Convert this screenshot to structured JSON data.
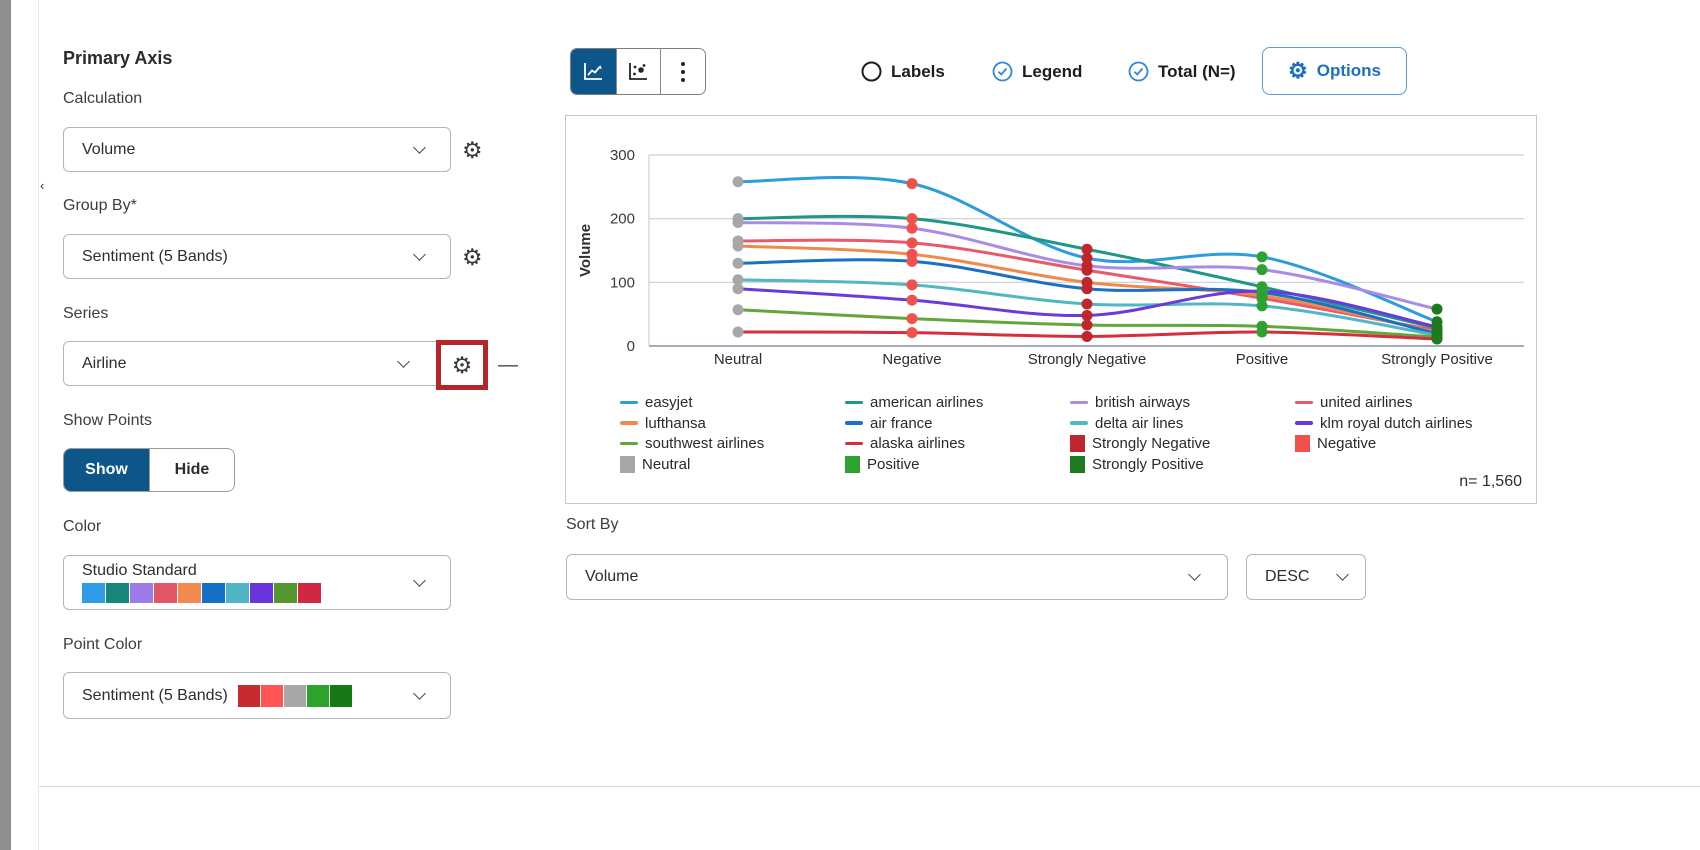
{
  "left_panel": {
    "title": "Primary Axis",
    "fields": [
      {
        "label": "Calculation",
        "value": "Volume"
      },
      {
        "label": "Group By*",
        "value": "Sentiment (5 Bands)"
      },
      {
        "label": "Series",
        "value": "Airline"
      }
    ],
    "series_remove_label": "—",
    "show_points": {
      "label": "Show Points",
      "options": [
        "Show",
        "Hide"
      ],
      "selected": "Show"
    },
    "color": {
      "label": "Color",
      "value": "Studio Standard",
      "swatches": [
        "#2E9BE6",
        "#17877B",
        "#9C7AE8",
        "#E05666",
        "#F2894E",
        "#1470C6",
        "#4FB4C4",
        "#6933DE",
        "#55972F",
        "#D02840"
      ]
    },
    "point_color": {
      "label": "Point Color",
      "value": "Sentiment (5 Bands)",
      "swatches": [
        "#C62A2E",
        "#FF5552",
        "#A8A8A8",
        "#2DA32D",
        "#187818"
      ]
    }
  },
  "toolbar": {
    "labels_toggle": "Labels",
    "legend_toggle": "Legend",
    "total_toggle": "Total (N=)",
    "options_label": "Options",
    "selected_chart_type": "line",
    "accent_blue": "#1B6FC8",
    "selected_bg": "#0C5689"
  },
  "chart_data": {
    "type": "line",
    "ylabel": "Volume",
    "ylim": [
      0,
      300
    ],
    "yticks": [
      0,
      100,
      200,
      300
    ],
    "grid": true,
    "legend_position": "bottom",
    "categories": [
      "Neutral",
      "Negative",
      "Strongly Negative",
      "Positive",
      "Strongly Positive"
    ],
    "point_colors_by_category": [
      "#A7A7A7",
      "#F2504B",
      "#C0272D",
      "#2EA231",
      "#1D7A1F"
    ],
    "series": [
      {
        "name": "easyjet",
        "color": "#2D9CDB",
        "values": [
          258,
          255,
          138,
          140,
          38
        ]
      },
      {
        "name": "american airlines",
        "color": "#20968A",
        "values": [
          200,
          200,
          152,
          93,
          28
        ]
      },
      {
        "name": "british airways",
        "color": "#A98BE8",
        "values": [
          194,
          185,
          126,
          120,
          58
        ]
      },
      {
        "name": "united airlines",
        "color": "#E8596A",
        "values": [
          165,
          162,
          119,
          75,
          24
        ]
      },
      {
        "name": "lufthansa",
        "color": "#F08A4B",
        "values": [
          157,
          144,
          100,
          79,
          21
        ]
      },
      {
        "name": "air france",
        "color": "#1A70C4",
        "values": [
          130,
          133,
          90,
          84,
          19
        ]
      },
      {
        "name": "delta air lines",
        "color": "#52B7C4",
        "values": [
          104,
          96,
          66,
          63,
          17
        ]
      },
      {
        "name": "klm royal dutch airlines",
        "color": "#6A3BD8",
        "values": [
          90,
          72,
          48,
          86,
          30
        ]
      },
      {
        "name": "southwest airlines",
        "color": "#63A63C",
        "values": [
          57,
          43,
          33,
          31,
          14
        ]
      },
      {
        "name": "alaska airlines",
        "color": "#D62E3E",
        "values": [
          22,
          21,
          15,
          22,
          11
        ]
      }
    ],
    "legend_extra": [
      {
        "name": "Strongly Negative",
        "color": "#C0272D"
      },
      {
        "name": "Negative",
        "color": "#F2504B"
      },
      {
        "name": "Neutral",
        "color": "#A7A7A7"
      },
      {
        "name": "Positive",
        "color": "#2EA231"
      },
      {
        "name": "Strongly Positive",
        "color": "#1D7A1F"
      }
    ],
    "total_n": "n= 1,560"
  },
  "sort_by": {
    "label": "Sort By",
    "value": "Volume",
    "direction": "DESC"
  }
}
